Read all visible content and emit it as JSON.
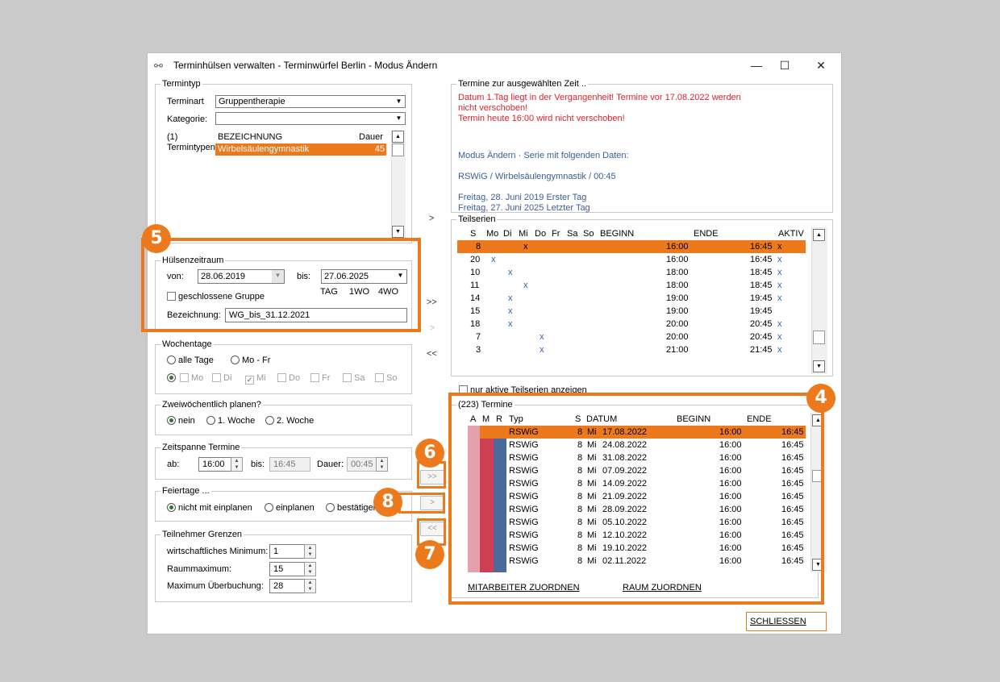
{
  "window": {
    "title": "Terminhülsen verwalten - Terminwürfel Berlin - Modus Ändern",
    "minimize": "—",
    "maximize": "☐",
    "close": "✕"
  },
  "termintyp": {
    "legend": "Termintyp",
    "terminart_label": "Terminart",
    "terminart_value": "Gruppentherapie",
    "kategorie_label": "Kategorie:",
    "kategorie_value": "",
    "count_label": "(1)",
    "termintypen_label": "Termintypen",
    "col_bezeichnung": "BEZEICHNUNG",
    "col_dauer": "Dauer",
    "item_name": "Wirbelsäulengymnastik",
    "item_dauer": "45"
  },
  "huelsenzeitraum": {
    "legend": "Hülsenzeitraum",
    "von_label": "von:",
    "von_value": "28.06.2019",
    "bis_label": "bis:",
    "bis_value": "27.06.2025",
    "tag": "TAG",
    "w1": "1WO",
    "w4": "4WO",
    "geschlossen_label": "geschlossene Gruppe",
    "bez_label": "Bezeichnung:",
    "bez_value": "WG_bis_31.12.2021"
  },
  "wochentage": {
    "legend": "Wochentage",
    "alle": "alle Tage",
    "mofr": "Mo - Fr",
    "days": [
      "Mo",
      "Di",
      "Mi",
      "Do",
      "Fr",
      "Sa",
      "So"
    ],
    "checked_day": "Mi"
  },
  "zweiwoechentlich": {
    "legend": "Zweiwöchentlich planen?",
    "nein": "nein",
    "w1": "1. Woche",
    "w2": "2. Woche"
  },
  "zeitspanne": {
    "legend": "Zeitspanne Termine",
    "ab_label": "ab:",
    "ab_value": "16:00",
    "bis_label": "bis:",
    "bis_value": "16:45",
    "dauer_label": "Dauer:",
    "dauer_value": "00:45"
  },
  "feiertage": {
    "legend": "Feiertage ...",
    "opt1": "nicht mit einplanen",
    "opt2": "einplanen",
    "opt3": "bestätigen"
  },
  "teilnehmer": {
    "legend": "Teilnehmer Grenzen",
    "min_label": "wirtschaftliches Minimum:",
    "min_value": "1",
    "raum_label": "Raummaximum:",
    "raum_value": "15",
    "ueber_label": "Maximum Überbuchung:",
    "ueber_value": "28"
  },
  "middle_buttons": {
    "right1": ">",
    "rightall": ">>",
    "right2": ">",
    "leftall": "<<"
  },
  "termine_zeit": {
    "legend": "Termine zur ausgewählten Zeit ..",
    "red_line1": "Datum  1.Tag liegt in der Vergangenheit! Termine vor 17.08.2022 werden",
    "red_line2": "nicht verschoben!",
    "red_line3": "Termin heute 16:00 wird nicht verschoben!",
    "blue_line1": "Modus Ändern · Serie mit folgenden Daten:",
    "blue_line2": "RSWiG / Wirbelsäulengymnastik / 00:45",
    "blue_line3": "Freitag, 28. Juni 2019 Erster Tag",
    "blue_line4": "Freitag, 27. Juni 2025 Letzter Tag"
  },
  "teilserien": {
    "legend": "Teilserien",
    "headers": {
      "s": "S",
      "mo": "Mo",
      "di": "Di",
      "mi": "Mi",
      "do": "Do",
      "fr": "Fr",
      "sa": "Sa",
      "so": "So",
      "beginn": "BEGINN",
      "ende": "ENDE",
      "aktiv": "AKTIV"
    },
    "rows": [
      {
        "s": "8",
        "mark": "x",
        "day": "mi",
        "beginn": "16:00",
        "ende": "16:45",
        "aktiv": "x",
        "selected": true
      },
      {
        "s": "20",
        "mark": "x",
        "day": "mo",
        "beginn": "16:00",
        "ende": "16:45",
        "aktiv": "x"
      },
      {
        "s": "10",
        "mark": "x",
        "day": "di",
        "beginn": "18:00",
        "ende": "18:45",
        "aktiv": "x"
      },
      {
        "s": "11",
        "mark": "x",
        "day": "mi",
        "beginn": "18:00",
        "ende": "18:45",
        "aktiv": "x"
      },
      {
        "s": "14",
        "mark": "x",
        "day": "di",
        "beginn": "19:00",
        "ende": "19:45",
        "aktiv": "x"
      },
      {
        "s": "15",
        "mark": "x",
        "day": "di",
        "beginn": "19:00",
        "ende": "19:45",
        "aktiv": ""
      },
      {
        "s": "18",
        "mark": "x",
        "day": "di",
        "beginn": "20:00",
        "ende": "20:45",
        "aktiv": "x"
      },
      {
        "s": "7",
        "mark": "x",
        "day": "do",
        "beginn": "20:00",
        "ende": "20:45",
        "aktiv": "x"
      },
      {
        "s": "3",
        "mark": "x",
        "day": "do",
        "beginn": "21:00",
        "ende": "21:45",
        "aktiv": "x"
      }
    ],
    "nur_aktive": "nur aktive Teilserien anzeigen"
  },
  "termine": {
    "legend": "(223) Termine",
    "headers": {
      "a": "A",
      "m": "M",
      "r": "R",
      "typ": "Typ",
      "s": "S",
      "datum": "DATUM",
      "beginn": "BEGINN",
      "ende": "ENDE"
    },
    "rows": [
      {
        "typ": "RSWiG",
        "s": "8",
        "tag": "Mi",
        "datum": "17.08.2022",
        "beginn": "16:00",
        "ende": "16:45",
        "selected": true
      },
      {
        "typ": "RSWiG",
        "s": "8",
        "tag": "Mi",
        "datum": "24.08.2022",
        "beginn": "16:00",
        "ende": "16:45"
      },
      {
        "typ": "RSWiG",
        "s": "8",
        "tag": "Mi",
        "datum": "31.08.2022",
        "beginn": "16:00",
        "ende": "16:45"
      },
      {
        "typ": "RSWiG",
        "s": "8",
        "tag": "Mi",
        "datum": "07.09.2022",
        "beginn": "16:00",
        "ende": "16:45"
      },
      {
        "typ": "RSWiG",
        "s": "8",
        "tag": "Mi",
        "datum": "14.09.2022",
        "beginn": "16:00",
        "ende": "16:45"
      },
      {
        "typ": "RSWiG",
        "s": "8",
        "tag": "Mi",
        "datum": "21.09.2022",
        "beginn": "16:00",
        "ende": "16:45"
      },
      {
        "typ": "RSWiG",
        "s": "8",
        "tag": "Mi",
        "datum": "28.09.2022",
        "beginn": "16:00",
        "ende": "16:45"
      },
      {
        "typ": "RSWiG",
        "s": "8",
        "tag": "Mi",
        "datum": "05.10.2022",
        "beginn": "16:00",
        "ende": "16:45"
      },
      {
        "typ": "RSWiG",
        "s": "8",
        "tag": "Mi",
        "datum": "12.10.2022",
        "beginn": "16:00",
        "ende": "16:45"
      },
      {
        "typ": "RSWiG",
        "s": "8",
        "tag": "Mi",
        "datum": "19.10.2022",
        "beginn": "16:00",
        "ende": "16:45"
      },
      {
        "typ": "RSWiG",
        "s": "8",
        "tag": "Mi",
        "datum": "02.11.2022",
        "beginn": "16:00",
        "ende": "16:45"
      }
    ],
    "btn_mitarbeiter": "MITARBEITER ZUORDNEN",
    "btn_raum": "RAUM ZUORDNEN"
  },
  "schliessen": "SCHLIESSEN",
  "badges": {
    "b4": "4",
    "b5": "5",
    "b6": "6",
    "b7": "7",
    "b8": "8"
  },
  "colors": {
    "accent": "#ec7a1c",
    "col_a": "#e3a0ad",
    "col_m": "#cf3e55",
    "col_r": "#4a6a9a",
    "red_text": "#d9232e",
    "blue_text": "#3a5e96"
  }
}
